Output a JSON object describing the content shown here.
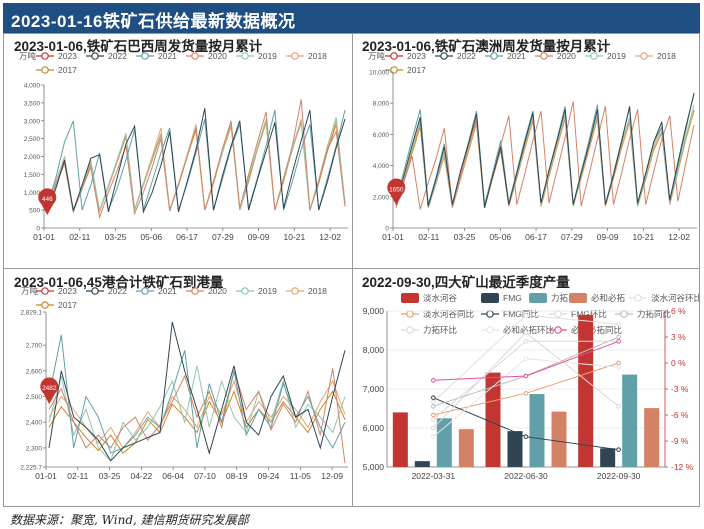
{
  "header": {
    "title": "2023-01-16铁矿石供给最新数据概况"
  },
  "footer": {
    "source": "数据来源：聚宽, Wind, 建信期货研究发展部"
  },
  "chart_data": [
    {
      "id": "brazil",
      "type": "line",
      "title": "2023-01-06,铁矿石巴西周发货量按月累计",
      "unit": "万吨",
      "ylim": [
        0,
        4000
      ],
      "yticks": [
        0,
        500,
        1000,
        1500,
        2000,
        2500,
        3000,
        3500,
        4000
      ],
      "ytick_labels": [
        "0",
        "500",
        "1,000",
        "1,500",
        "2,000",
        "2,500",
        "3,000",
        "3,500",
        "4,000"
      ],
      "xticks": [
        "01-01",
        "02-11",
        "03-25",
        "05-06",
        "06-17",
        "07-29",
        "09-09",
        "10-21",
        "12-02"
      ],
      "marker": {
        "label": "446",
        "x": 0.03,
        "y": 446
      },
      "series": [
        {
          "name": "2023",
          "color": "#c23531",
          "values": [
            446
          ]
        },
        {
          "name": "2022",
          "color": "#2f4554",
          "values": [
            400,
            1100,
            1900,
            480,
            1200,
            1950,
            2050,
            450,
            1400,
            2350,
            2850,
            450,
            1000,
            1750,
            2700,
            450,
            1300,
            2200,
            3350,
            500,
            1450,
            2300,
            3000,
            500,
            1350,
            2150,
            2950,
            550,
            1550,
            2450,
            3300,
            500,
            1300,
            2250,
            3050
          ]
        },
        {
          "name": "2021",
          "color": "#61a0a8",
          "values": [
            600,
            1400,
            2400,
            3000,
            500,
            1200,
            2100,
            500,
            1100,
            1900,
            2750,
            500,
            1300,
            2100,
            2800,
            500,
            1250,
            2100,
            3050,
            500,
            1350,
            2250,
            2900,
            550,
            1400,
            2300,
            3300,
            500,
            1300,
            2200,
            2900,
            520,
            1400,
            2300,
            3300
          ]
        },
        {
          "name": "2020",
          "color": "#d48265",
          "values": [
            500,
            1200,
            1800,
            450,
            1100,
            1700,
            300,
            1000,
            1600,
            2300,
            400,
            1000,
            1700,
            2500,
            480,
            1200,
            2000,
            2800,
            500,
            1300,
            2200,
            3000,
            550,
            1500,
            2400,
            3250,
            500,
            1400,
            2300,
            3600,
            500,
            1300,
            2200,
            2700,
            600
          ]
        },
        {
          "name": "2019",
          "color": "#91c7ae",
          "values": [
            550,
            1300,
            1950,
            500,
            1150,
            1850,
            500,
            1200,
            1900,
            2600,
            500,
            1200,
            1950,
            2650,
            480,
            1200,
            2000,
            2850,
            500,
            1300,
            2100,
            2900,
            500,
            1400,
            2250,
            3050,
            500,
            1350,
            2200,
            3000,
            500,
            1350,
            2300,
            3100,
            650
          ]
        },
        {
          "name": "2018",
          "color": "#e5a372",
          "values": [
            500,
            1250,
            2000,
            500,
            1150,
            1900,
            450,
            1150,
            1900,
            2650,
            520,
            1250,
            2000,
            2800,
            500,
            1250,
            2050,
            2900,
            500,
            1300,
            2150,
            2950,
            520,
            1400,
            2250,
            3000,
            500,
            1350,
            2250,
            3050,
            500,
            1300,
            2250,
            3000,
            700
          ]
        },
        {
          "name": "2017",
          "color": "#ca8622",
          "values": [
            520,
            1200,
            1900,
            480,
            1100,
            1800,
            480,
            1150,
            1850,
            2550,
            500,
            1200,
            1900,
            2600,
            500,
            1200,
            2000,
            2750,
            500,
            1250,
            2100,
            2850,
            500,
            1300,
            2200,
            2950,
            500,
            1300,
            2200,
            2950,
            500,
            1250,
            2150,
            2900,
            700
          ]
        }
      ]
    },
    {
      "id": "australia",
      "type": "line",
      "title": "2023-01-06,铁矿石澳洲周发货量按月累计",
      "unit": "万吨",
      "ylim": [
        0,
        10000
      ],
      "yticks": [
        0,
        2000,
        4000,
        6000,
        8000,
        10000
      ],
      "ytick_labels": [
        "0",
        "2,000",
        "4,000",
        "6,000",
        "8,000",
        "10,000"
      ],
      "xticks": [
        "01-01",
        "02-11",
        "03-25",
        "05-06",
        "06-17",
        "07-29",
        "09-09",
        "10-21",
        "12-02"
      ],
      "marker": {
        "label": "1650",
        "x": 0.03,
        "y": 1650
      },
      "series": [
        {
          "name": "2023",
          "color": "#c23531",
          "values": [
            1650
          ]
        },
        {
          "name": "2022",
          "color": "#2f4554",
          "values": [
            1500,
            3400,
            5300,
            7100,
            1400,
            3200,
            5200,
            1500,
            3600,
            5400,
            7300,
            1300,
            3300,
            5200,
            1500,
            3500,
            5500,
            7400,
            1600,
            3700,
            5600,
            7600,
            1500,
            3500,
            5400,
            7600,
            1500,
            3400,
            5500,
            7800,
            1600,
            3500,
            5500,
            6800,
            1800,
            4200,
            6500,
            8600
          ]
        },
        {
          "name": "2021",
          "color": "#61a0a8",
          "values": [
            1700,
            3700,
            5700,
            7600,
            1500,
            3300,
            5400,
            1500,
            3600,
            5500,
            7500,
            1500,
            3500,
            5600,
            1600,
            3600,
            5700,
            7500,
            1600,
            3700,
            5700,
            7800,
            1500,
            3600,
            5700,
            7900,
            1500,
            3500,
            5600,
            7700,
            1500,
            3500,
            5500,
            6500,
            1700,
            4000,
            6300,
            8700
          ]
        },
        {
          "name": "2020",
          "color": "#d48265",
          "values": [
            1300,
            3000,
            4600,
            1200,
            2900,
            4500,
            6400,
            1400,
            3300,
            5300,
            7000,
            1300,
            3300,
            5300,
            7200,
            1500,
            3500,
            5600,
            7500,
            1600,
            3700,
            5800,
            8100,
            1400,
            3500,
            5700,
            7800,
            1500,
            3500,
            5700,
            7600,
            1500,
            3600,
            5700,
            7200,
            1700,
            4200,
            6600
          ]
        },
        {
          "name": "2019",
          "color": "#91c7ae",
          "values": [
            1500,
            3300,
            5100,
            6900,
            1300,
            3000,
            4900,
            1400,
            3300,
            5200,
            7000,
            1400,
            3400,
            5300,
            1500,
            3400,
            5400,
            7200,
            1500,
            3500,
            5500,
            7300,
            1400,
            3400,
            5400,
            7300,
            1500,
            3400,
            5400,
            7100,
            1400,
            3300,
            5300,
            6400,
            1600,
            3800,
            5900,
            7900
          ]
        },
        {
          "name": "2018",
          "color": "#e5a372",
          "values": [
            1400,
            3200,
            5000,
            6700,
            1300,
            2900,
            4700,
            1300,
            3100,
            5000,
            6800,
            1400,
            3300,
            5200,
            1400,
            3300,
            5200,
            7000,
            1500,
            3400,
            5300,
            7100,
            1400,
            3300,
            5200,
            7100,
            1400,
            3300,
            5200,
            6900,
            1400,
            3200,
            5100,
            6200,
            1500,
            3700,
            5800,
            7600
          ]
        },
        {
          "name": "2017",
          "color": "#ca8622",
          "values": [
            1400,
            3100,
            4800,
            6500,
            1300,
            2900,
            4600,
            1300,
            3100,
            4900,
            6700,
            1300,
            3200,
            5000,
            1400,
            3200,
            5100,
            6900,
            1400,
            3300,
            5200,
            7000,
            1400,
            3200,
            5100,
            7000,
            1400,
            3200,
            5100,
            6800,
            1400,
            3100,
            5000,
            6100,
            1500,
            3600,
            5700,
            7500
          ]
        }
      ]
    },
    {
      "id": "port",
      "type": "line",
      "title": "2023-01-06,45港合计铁矿石到港量",
      "unit": "万吨",
      "ylim": [
        2225.7,
        2829.1
      ],
      "yticks": [
        2225.7,
        2300,
        2400,
        2500,
        2600,
        2700,
        2829.1
      ],
      "ytick_labels": [
        "2,225.7",
        "2,300",
        "2,400",
        "2,500",
        "2,600",
        "2,700",
        "2,829.1"
      ],
      "xticks": [
        "01-01",
        "02-11",
        "03-25",
        "04-22",
        "06-04",
        "07-10",
        "08-19",
        "09-24",
        "11-05",
        "12-09"
      ],
      "marker": {
        "label": "2482",
        "x": 0.03,
        "y": 2482
      },
      "series": [
        {
          "name": "2023",
          "color": "#c23531",
          "values": [
            2482
          ]
        },
        {
          "name": "2022",
          "color": "#2f4554",
          "values": [
            2300,
            2600,
            2420,
            2380,
            2330,
            2250,
            2300,
            2320,
            2340,
            2360,
            2790,
            2600,
            2450,
            2280,
            2450,
            2620,
            2400,
            2350,
            2500,
            2580,
            2420,
            2450,
            2300,
            2500,
            2680
          ]
        },
        {
          "name": "2021",
          "color": "#61a0a8",
          "values": [
            2500,
            2740,
            2300,
            2500,
            2420,
            2280,
            2300,
            2350,
            2420,
            2380,
            2520,
            2680,
            2300,
            2550,
            2400,
            2600,
            2350,
            2450,
            2380,
            2550,
            2420,
            2500,
            2380,
            2300,
            2400
          ]
        },
        {
          "name": "2020",
          "color": "#d48265",
          "values": [
            2450,
            2530,
            2400,
            2300,
            2350,
            2300,
            2380,
            2420,
            2330,
            2390,
            2480,
            2580,
            2420,
            2520,
            2380,
            2600,
            2450,
            2520,
            2370,
            2470,
            2400,
            2520,
            2350,
            2610,
            2240
          ]
        },
        {
          "name": "2019",
          "color": "#91c7ae",
          "values": [
            2400,
            2580,
            2350,
            2450,
            2300,
            2250,
            2400,
            2330,
            2380,
            2460,
            2560,
            2400,
            2620,
            2380,
            2560,
            2420,
            2360,
            2520,
            2400,
            2560,
            2380,
            2470,
            2420,
            2360,
            2500
          ]
        },
        {
          "name": "2018",
          "color": "#e5a372",
          "values": [
            2420,
            2500,
            2450,
            2380,
            2320,
            2380,
            2300,
            2360,
            2440,
            2380,
            2500,
            2450,
            2380,
            2500,
            2430,
            2560,
            2400,
            2480,
            2420,
            2500,
            2450,
            2380,
            2480,
            2560,
            2430
          ]
        },
        {
          "name": "2017",
          "color": "#ca8622",
          "values": [
            2380,
            2460,
            2400,
            2340,
            2290,
            2350,
            2280,
            2320,
            2410,
            2360,
            2470,
            2420,
            2360,
            2480,
            2400,
            2520,
            2380,
            2450,
            2400,
            2480,
            2420,
            2360,
            2450,
            2520,
            2410
          ]
        }
      ]
    },
    {
      "id": "miners",
      "type": "bar",
      "title": "2022-09-30,四大矿山最近季度产量",
      "categories": [
        "2022-03-31",
        "2022-06-30",
        "2022-09-30"
      ],
      "ylim": [
        5000,
        9000
      ],
      "yticks": [
        5000,
        6000,
        7000,
        8000,
        9000
      ],
      "ytick_labels": [
        "5,000",
        "6,000",
        "7,000",
        "8,000",
        "9,000"
      ],
      "y2lim": [
        -12,
        6
      ],
      "y2ticks": [
        -12,
        -9,
        -6,
        -3,
        0,
        3,
        6
      ],
      "y2tick_labels": [
        "-12 %",
        "-9 %",
        "-6 %",
        "-3 %",
        "0 %",
        "3 %",
        "6 %"
      ],
      "bars": [
        {
          "name": "淡水河谷",
          "color": "#c23531",
          "values": [
            6400,
            7420,
            8900
          ]
        },
        {
          "name": "FMG",
          "color": "#2f4554",
          "values": [
            5150,
            5920,
            5480
          ]
        },
        {
          "name": "力拓",
          "color": "#61a0a8",
          "values": [
            6250,
            6870,
            7370
          ]
        },
        {
          "name": "必和必拓",
          "color": "#d48265",
          "values": [
            5970,
            6420,
            6510
          ]
        }
      ],
      "lines": [
        {
          "name": "淡水河谷环比",
          "color": "#e0e0e0",
          "values": [
            -4.5,
            5.5,
            4.5
          ]
        },
        {
          "name": "淡水河谷同比",
          "color": "#e5a372",
          "values": [
            -6,
            -3.5,
            0
          ]
        },
        {
          "name": "FMG同比",
          "color": "#2f4554",
          "values": [
            -4,
            -8.5,
            -10
          ]
        },
        {
          "name": "FMG环比",
          "color": "#d8d8d8",
          "values": [
            -7.5,
            3.5,
            -5
          ]
        },
        {
          "name": "力拓同比",
          "color": "#bdbdbd",
          "values": [
            -5,
            -1.5,
            3
          ]
        },
        {
          "name": "力拓环比",
          "color": "#dadada",
          "values": [
            -6.5,
            2.5,
            2.5
          ]
        },
        {
          "name": "必和必拓环比",
          "color": "#e6e6e6",
          "values": [
            -8.5,
            0.5,
            -0.5
          ]
        },
        {
          "name": "必和必拓同比",
          "color": "#e0509a",
          "values": [
            -2,
            -1.5,
            2.5
          ]
        }
      ]
    }
  ]
}
